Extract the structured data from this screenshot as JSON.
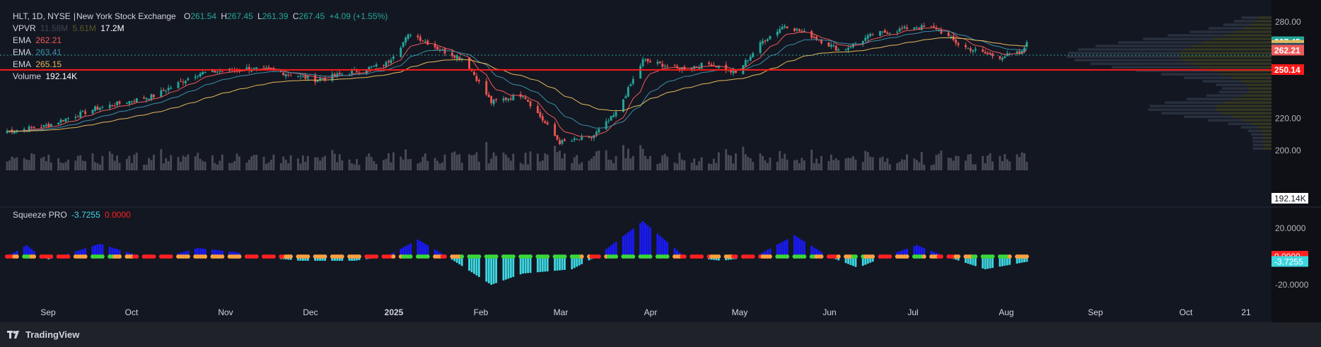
{
  "header": {
    "symbol": "HLT, 1D, NYSE",
    "exchange": "New York Stock Exchange",
    "open_label": "O",
    "open": "261.54",
    "high_label": "H",
    "high": "267.45",
    "low_label": "L",
    "low": "261.39",
    "close_label": "C",
    "close": "267.45",
    "change": "+4.09 (+1.55%)"
  },
  "legend": {
    "vpvr_label": "VPVR",
    "vpvr_v1": "11.58M",
    "vpvr_v2": "5.61M",
    "vpvr_total": "17.2M",
    "ema1_label": "EMA",
    "ema1_value": "262.21",
    "ema2_label": "EMA",
    "ema2_value": "263.41",
    "ema3_label": "EMA",
    "ema3_value": "265.15",
    "volume_label": "Volume",
    "volume_value": "192.14K",
    "squeeze_label": "Squeeze PRO",
    "squeeze_value": "-3.7255",
    "squeeze_signal": "0.0000"
  },
  "colors": {
    "background": "#0e1016",
    "up": "#26a69a",
    "down": "#ef5350",
    "ema_fast": "#f05a5a",
    "ema_mid": "#3d8ea8",
    "ema_slow": "#e5b95a",
    "hline": "#ff1a1a",
    "momentum_pos": "#1a1aff",
    "momentum_neg": "#3dd6e0",
    "dot_green": "#3ad63a",
    "dot_red": "#ff2020",
    "dot_orange": "#ffa040"
  },
  "footer": {
    "brand": "TradingView",
    "logo_icon": "tradingview-logo-icon"
  },
  "chart_data": [
    {
      "type": "candlestick",
      "title": "HLT, 1D, NYSE",
      "x_tick_labels": [
        "Sep",
        "Oct",
        "Nov",
        "Dec",
        "2025",
        "Feb",
        "Mar",
        "Apr",
        "May",
        "Jun",
        "Jul",
        "Aug",
        "Sep",
        "Oct",
        "21"
      ],
      "y_tick_labels": [
        "280.00",
        "220.00",
        "200.00"
      ],
      "ylim": [
        195,
        283
      ],
      "horizontal_line": 250.14,
      "price_labels": [
        {
          "value": "267.45",
          "color": "#26a69a"
        },
        {
          "value": "265.15",
          "color": "#e5b95a"
        },
        {
          "value": "263.41",
          "color": "#2b4a5e"
        },
        {
          "value": "262.21",
          "color": "#f05a5a"
        },
        {
          "value": "250.14",
          "color": "#ff1a1a"
        }
      ],
      "close_keypoints": [
        {
          "x": "Aug 26",
          "y": 212
        },
        {
          "x": "Sep 10",
          "y": 215
        },
        {
          "x": "Oct 1",
          "y": 226
        },
        {
          "x": "Oct 25",
          "y": 234
        },
        {
          "x": "Nov 12",
          "y": 248
        },
        {
          "x": "Dec 2",
          "y": 251
        },
        {
          "x": "Dec 12",
          "y": 250
        },
        {
          "x": "Dec 30",
          "y": 244
        },
        {
          "x": "Jan 15",
          "y": 249
        },
        {
          "x": "Jan 28",
          "y": 254
        },
        {
          "x": "Feb 7",
          "y": 273
        },
        {
          "x": "Feb 20",
          "y": 262
        },
        {
          "x": "Mar 1",
          "y": 257
        },
        {
          "x": "Mar 12",
          "y": 230
        },
        {
          "x": "Mar 25",
          "y": 235
        },
        {
          "x": "Apr 4",
          "y": 215
        },
        {
          "x": "Apr 9",
          "y": 205
        },
        {
          "x": "Apr 22",
          "y": 208
        },
        {
          "x": "May 2",
          "y": 223
        },
        {
          "x": "May 13",
          "y": 256
        },
        {
          "x": "May 28",
          "y": 251
        },
        {
          "x": "Jun 10",
          "y": 254
        },
        {
          "x": "Jun 20",
          "y": 248
        },
        {
          "x": "Jul 1",
          "y": 268
        },
        {
          "x": "Jul 10",
          "y": 278
        },
        {
          "x": "Jul 20",
          "y": 272
        },
        {
          "x": "Aug 2",
          "y": 262
        },
        {
          "x": "Aug 15",
          "y": 272
        },
        {
          "x": "Sep 1",
          "y": 277
        },
        {
          "x": "Sep 10",
          "y": 276
        },
        {
          "x": "Sep 20",
          "y": 265
        },
        {
          "x": "Oct 5",
          "y": 258
        },
        {
          "x": "Oct 15",
          "y": 261
        },
        {
          "x": "Oct 17",
          "y": 267.45
        }
      ],
      "volume_last": "192.14K"
    },
    {
      "type": "histogram",
      "title": "Squeeze PRO",
      "y_tick_labels": [
        "20.0000",
        "-20.0000"
      ],
      "ylim": [
        -30,
        28
      ],
      "value_labels": [
        {
          "value": "0.0000",
          "color": "#ff2020"
        },
        {
          "value": "-3.7255",
          "color": "#3dd6e0"
        }
      ],
      "momentum_keypoints": [
        {
          "x": "Aug 26",
          "y": 0
        },
        {
          "x": "Sep 3",
          "y": 8
        },
        {
          "x": "Sep 9",
          "y": 0
        },
        {
          "x": "Sep 12",
          "y": -2
        },
        {
          "x": "Sep 20",
          "y": 2
        },
        {
          "x": "Oct 3",
          "y": 9
        },
        {
          "x": "Oct 20",
          "y": 0
        },
        {
          "x": "Oct 28",
          "y": -1
        },
        {
          "x": "Nov 12",
          "y": 6
        },
        {
          "x": "Nov 28",
          "y": 3
        },
        {
          "x": "Dec 5",
          "y": 0
        },
        {
          "x": "Dec 24",
          "y": -3
        },
        {
          "x": "Jan 15",
          "y": -3
        },
        {
          "x": "Jan 28",
          "y": 0
        },
        {
          "x": "Feb 10",
          "y": 12
        },
        {
          "x": "Feb 22",
          "y": 0
        },
        {
          "x": "Mar 12",
          "y": -20
        },
        {
          "x": "Mar 25",
          "y": -12
        },
        {
          "x": "Apr 14",
          "y": -9
        },
        {
          "x": "Apr 24",
          "y": 0
        },
        {
          "x": "May 13",
          "y": 25
        },
        {
          "x": "May 30",
          "y": 0
        },
        {
          "x": "Jun 14",
          "y": -3
        },
        {
          "x": "Jun 28",
          "y": 0
        },
        {
          "x": "Jul 14",
          "y": 15
        },
        {
          "x": "Jul 28",
          "y": 0
        },
        {
          "x": "Aug 9",
          "y": -8
        },
        {
          "x": "Aug 20",
          "y": 0
        },
        {
          "x": "Sep 2",
          "y": 8
        },
        {
          "x": "Sep 14",
          "y": 0
        },
        {
          "x": "Sep 30",
          "y": -9
        },
        {
          "x": "Oct 17",
          "y": -3.7255
        }
      ]
    }
  ]
}
